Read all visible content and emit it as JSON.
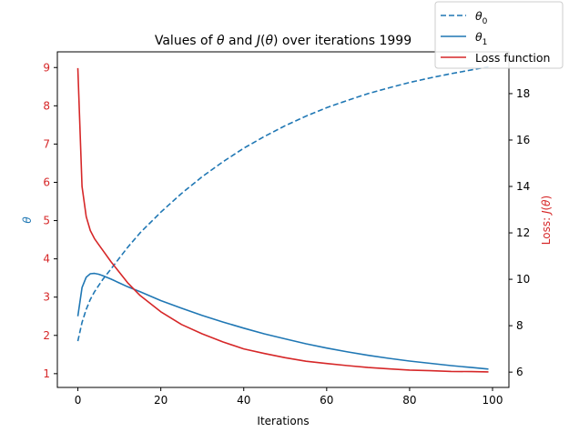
{
  "chart_data": {
    "type": "line",
    "title": "Values of θ and J(θ) over iterations 1999",
    "xlabel": "Iterations",
    "ylabel_left": "θ",
    "ylabel_right": "Loss: J(θ)",
    "xlim": [
      -4.95,
      103.95
    ],
    "ylim_left": [
      0.64,
      9.41
    ],
    "ylim_right": [
      5.34,
      19.8
    ],
    "x_ticks": [
      0,
      20,
      40,
      60,
      80,
      100
    ],
    "y_ticks_left": [
      1,
      2,
      3,
      4,
      5,
      6,
      7,
      8,
      9
    ],
    "y_ticks_right": [
      6,
      8,
      10,
      12,
      14,
      16,
      18
    ],
    "left_tick_color": "#d62728",
    "right_tick_color": "#000000",
    "left_label_color": "#1f77b4",
    "right_label_color": "#d62728",
    "grid": false,
    "legend_position": "top-right",
    "series": [
      {
        "name": "θ0",
        "axis": "left",
        "color": "#1f77b4",
        "linestyle": "dashed",
        "x": [
          0,
          1,
          2,
          3,
          4,
          5,
          6,
          8,
          10,
          12,
          15,
          20,
          25,
          30,
          35,
          40,
          45,
          50,
          55,
          60,
          65,
          70,
          75,
          80,
          85,
          90,
          95,
          99
        ],
        "y": [
          1.85,
          2.34,
          2.68,
          2.94,
          3.14,
          3.3,
          3.46,
          3.74,
          4.02,
          4.3,
          4.68,
          5.22,
          5.71,
          6.15,
          6.54,
          6.89,
          7.2,
          7.48,
          7.73,
          7.95,
          8.14,
          8.32,
          8.47,
          8.61,
          8.73,
          8.84,
          8.94,
          9.02
        ]
      },
      {
        "name": "θ1",
        "axis": "left",
        "color": "#1f77b4",
        "linestyle": "solid",
        "x": [
          0,
          1,
          2,
          3,
          4,
          5,
          6,
          8,
          10,
          12,
          15,
          20,
          25,
          30,
          35,
          40,
          45,
          50,
          55,
          60,
          65,
          70,
          75,
          80,
          85,
          90,
          95,
          99
        ],
        "y": [
          2.5,
          3.25,
          3.52,
          3.61,
          3.62,
          3.6,
          3.56,
          3.47,
          3.37,
          3.27,
          3.14,
          2.91,
          2.71,
          2.52,
          2.35,
          2.19,
          2.04,
          1.91,
          1.78,
          1.67,
          1.57,
          1.48,
          1.4,
          1.33,
          1.27,
          1.21,
          1.16,
          1.12
        ]
      },
      {
        "name": "Loss function",
        "axis": "right",
        "color": "#d62728",
        "linestyle": "solid",
        "x": [
          0,
          1,
          2,
          3,
          4,
          5,
          6,
          8,
          10,
          12,
          15,
          20,
          25,
          30,
          35,
          40,
          45,
          50,
          55,
          60,
          65,
          70,
          75,
          80,
          85,
          90,
          95,
          99
        ],
        "y": [
          19.1,
          14.0,
          12.7,
          12.1,
          11.75,
          11.5,
          11.25,
          10.75,
          10.3,
          9.85,
          9.3,
          8.6,
          8.05,
          7.65,
          7.3,
          7.0,
          6.8,
          6.62,
          6.47,
          6.37,
          6.28,
          6.2,
          6.14,
          6.09,
          6.06,
          6.03,
          6.02,
          6.01
        ]
      }
    ]
  }
}
